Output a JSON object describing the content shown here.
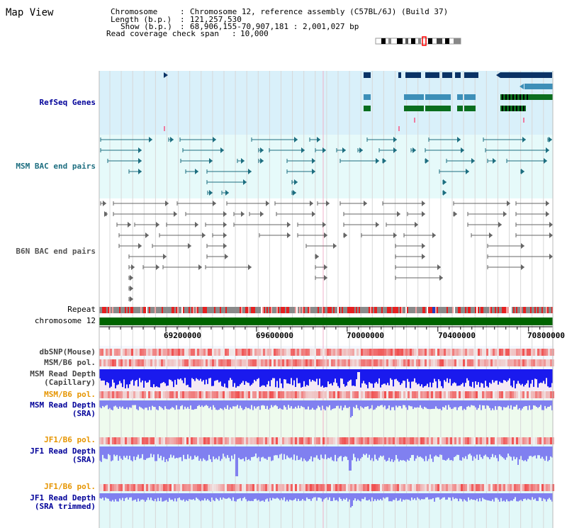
{
  "page": {
    "title": "Map View"
  },
  "info": {
    "chromosome_label": "Chromosome",
    "chromosome_value": "Chromosome 12, reference assembly (C57BL/6J) (Build 37)",
    "length_label": "Length (b.p.)",
    "length_value": "121,257,530",
    "show_label": "Show (b.p.)",
    "show_value": "68,906,155-70,907,181 : 2,001,027 bp",
    "coverage_label": "Read coverage check span",
    "coverage_value": "10,000"
  },
  "tracks": {
    "refseq": "RefSeq Genes",
    "msm_bac": "MSM BAC end pairs",
    "b6n_bac": "B6N BAC end pairs",
    "repeat": "Repeat",
    "chromosome": "chromosome 12",
    "dbsnp": "dbSNP(Mouse)",
    "msm_b6_pol_1": "MSM/B6 pol.",
    "msm_depth_cap_1": "MSM Read Depth",
    "msm_depth_cap_2": "(Capillary)",
    "msm_b6_pol_2": "MSM/B6 pol.",
    "msm_depth_sra_1": "MSM Read Depth",
    "msm_depth_sra_2": "(SRA)",
    "jf1_b6_pol_1": "JF1/B6 pol.",
    "jf1_depth_sra_1": "JF1 Read Depth",
    "jf1_depth_sra_2": "(SRA)",
    "jf1_b6_pol_2": "JF1/B6 pol.",
    "jf1_depth_trim_1": "JF1 Read Depth",
    "jf1_depth_trim_2": "(SRA trimmed)"
  },
  "ruler": {
    "ticks": [
      "69200000",
      "69600000",
      "70000000",
      "70400000",
      "70800000"
    ],
    "tick_values": [
      69200000,
      69600000,
      70000000,
      70400000,
      70800000
    ],
    "range_start": 68906155,
    "range_end": 70907181
  },
  "colors": {
    "refseq_bg": "#d9f0fa",
    "msm_bg": "#e6fafa",
    "gene_navy": "#0a3366",
    "gene_teal": "#3d8fb8",
    "gene_green": "#0a6e1e",
    "msm_line": "#1d6e80",
    "b6n_line": "#555555",
    "chrom_green": "#006400",
    "depth_blue": "#1a1aee",
    "depth_light": "#8080f0",
    "pol_red": "#f04040",
    "sra_bg": "#eefbee",
    "jf1_bg": "#e2f8f8"
  }
}
